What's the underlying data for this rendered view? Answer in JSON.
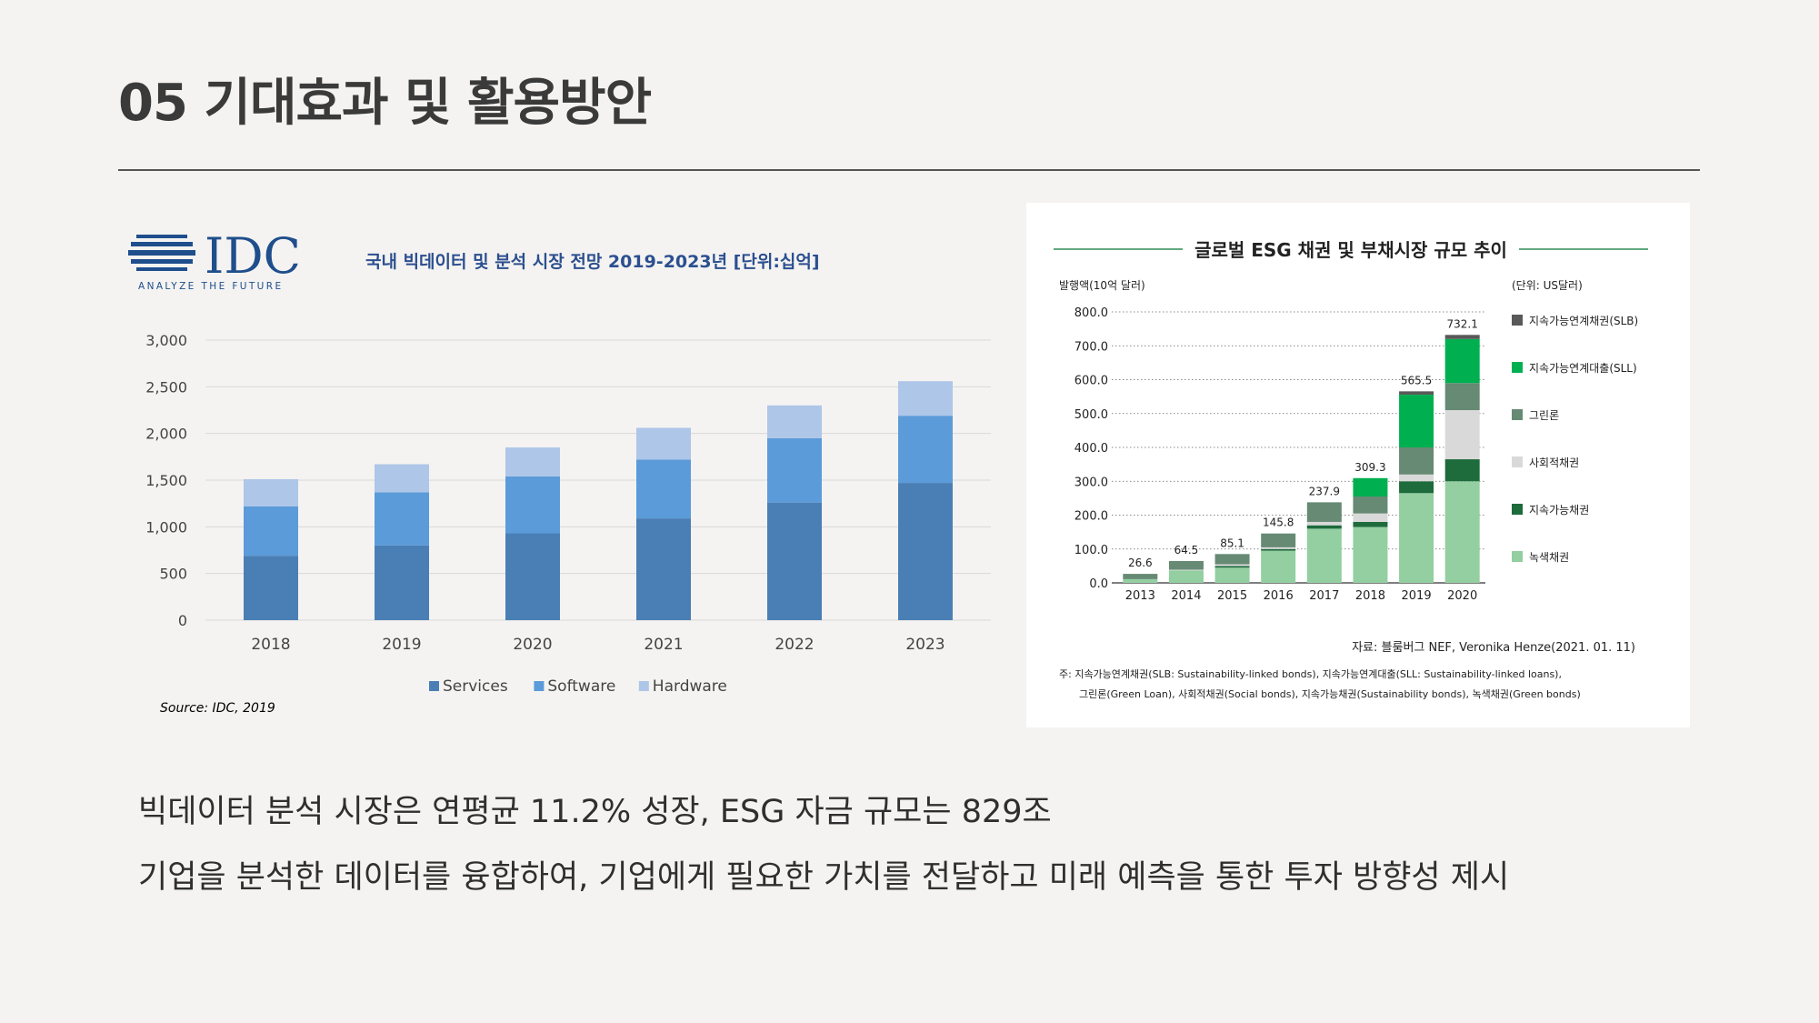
{
  "slide": {
    "title": "05 기대효과 및 활용방안",
    "lines": [
      "빅데이터 분석 시장은 연평균 11.2% 성장, ESG 자금 규모는 829조",
      "기업을 분석한 데이터를 융합하여, 기업에게 필요한 가치를 전달하고 미래 예측을 통한 투자 방향성 제시"
    ]
  },
  "idc_logo": {
    "text": "IDC",
    "tagline": "ANALYZE THE FUTURE",
    "color": "#1f4e8c"
  },
  "chart_data": [
    {
      "type": "bar",
      "stacked": true,
      "title": "국내 빅데이터 및 분석 시장 전망 2019-2023년 [단위:십억]",
      "categories": [
        "2018",
        "2019",
        "2020",
        "2021",
        "2022",
        "2023"
      ],
      "series": [
        {
          "name": "Services",
          "color": "#4a7fb5",
          "values": [
            690,
            800,
            930,
            1090,
            1260,
            1470
          ]
        },
        {
          "name": "Software",
          "color": "#5b9bd9",
          "values": [
            530,
            570,
            610,
            630,
            690,
            720
          ]
        },
        {
          "name": "Hardware",
          "color": "#aec6e8",
          "values": [
            290,
            300,
            310,
            340,
            350,
            370
          ]
        }
      ],
      "yticks": [
        "0",
        "500",
        "1,000",
        "1,500",
        "2,000",
        "2,500",
        "3,000"
      ],
      "ylim": [
        0,
        3000
      ],
      "grid": true,
      "legend": "bottom",
      "source": "Source: IDC, 2019"
    },
    {
      "type": "bar",
      "stacked": true,
      "title": "글로벌 ESG 채권 및 부채시장 규모 추이",
      "ylabel": "발행액(10억 달러)",
      "unit_note": "(단위: US달러)",
      "categories": [
        "2013",
        "2014",
        "2015",
        "2016",
        "2017",
        "2018",
        "2019",
        "2020"
      ],
      "totals": [
        "26.6",
        "64.5",
        "85.1",
        "145.8",
        "237.9",
        "309.3",
        "565.5",
        "732.1"
      ],
      "series": [
        {
          "name": "녹색채권",
          "color": "#93cfa1",
          "values": [
            11,
            37,
            45,
            95,
            160,
            165,
            265,
            300
          ]
        },
        {
          "name": "지속가능채권",
          "color": "#1e6b3c",
          "values": [
            0,
            0,
            5,
            5,
            10,
            15,
            35,
            65
          ]
        },
        {
          "name": "사회적채권",
          "color": "#d9d9d9",
          "values": [
            0,
            2,
            5,
            5,
            10,
            25,
            20,
            145
          ]
        },
        {
          "name": "그린론",
          "color": "#668a74",
          "values": [
            15.6,
            25.5,
            30.1,
            40.8,
            57.9,
            50,
            80,
            80
          ]
        },
        {
          "name": "지속가능연계대출",
          "color": "#00b050",
          "values": [
            0,
            0,
            0,
            0,
            0,
            54.3,
            155.5,
            130
          ]
        },
        {
          "name": "지속가능연계채권",
          "color": "#595959",
          "values": [
            0,
            0,
            0,
            0,
            0,
            0,
            10,
            12.1
          ]
        }
      ],
      "legend_order": [
        "지속가능연계채권(SLB)",
        "지속가능연계대출(SLL)",
        "그린론",
        "사회적채권",
        "지속가능채권",
        "녹색채권"
      ],
      "yticks": [
        "0.0",
        "100.0",
        "200.0",
        "300.0",
        "400.0",
        "500.0",
        "600.0",
        "700.0",
        "800.0"
      ],
      "ylim": [
        0,
        800
      ],
      "grid": true,
      "legend": "right",
      "source": "자료: 블룸버그 NEF, Veronika Henze(2021. 01. 11)",
      "notes": [
        "주: 지속가능연계채권(SLB: Sustainability-linked bonds), 지속가능연계대출(SLL: Sustainability-linked loans),",
        "그린론(Green Loan), 사회적채권(Social bonds), 지속가능채권(Sustainability bonds), 녹색채권(Green bonds)"
      ]
    }
  ]
}
